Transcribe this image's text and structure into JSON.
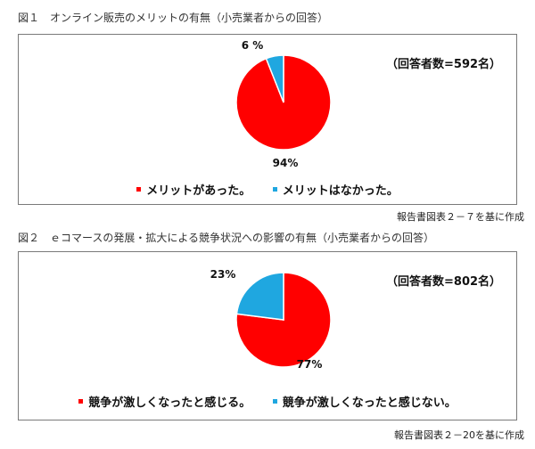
{
  "chart_data": [
    {
      "type": "pie",
      "title": "図１　オンライン販売のメリットの有無（小売業者からの回答）",
      "respondents": "（回答者数=592名）",
      "slices": [
        {
          "name": "メリットがあった。",
          "value": 94,
          "label": "94%",
          "color": "#ff0000"
        },
        {
          "name": "メリットはなかった。",
          "value": 6,
          "label": "6 %",
          "color": "#1fa7e0"
        }
      ],
      "legend_position": "bottom",
      "source": "報告書図表２－７を基に作成"
    },
    {
      "type": "pie",
      "title": "図２　ｅコマースの発展・拡大による競争状況への影響の有無（小売業者からの回答）",
      "respondents": "（回答者数=802名）",
      "slices": [
        {
          "name": "競争が激しくなったと感じる。",
          "value": 77,
          "label": "77%",
          "color": "#ff0000"
        },
        {
          "name": "競争が激しくなったと感じない。",
          "value": 23,
          "label": "23%",
          "color": "#1fa7e0"
        }
      ],
      "legend_position": "bottom",
      "source": "報告書図表２－20を基に作成"
    }
  ]
}
